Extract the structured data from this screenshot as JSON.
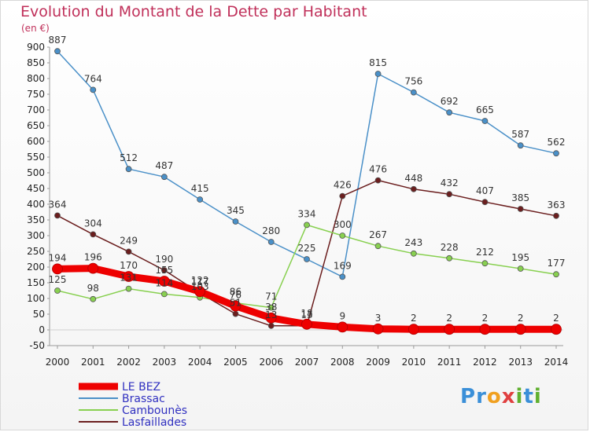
{
  "chart_data": {
    "type": "line",
    "title": "Evolution du Montant de la Dette par Habitant",
    "unit_label": "(en €)",
    "x": [
      2000,
      2001,
      2002,
      2003,
      2004,
      2005,
      2006,
      2007,
      2008,
      2009,
      2010,
      2011,
      2012,
      2013,
      2014
    ],
    "ylim": [
      -50,
      900
    ],
    "yticks": [
      -50,
      0,
      50,
      100,
      150,
      200,
      250,
      300,
      350,
      400,
      450,
      500,
      550,
      600,
      650,
      700,
      750,
      800,
      850,
      900
    ],
    "grid": false,
    "legend_position": "bottom-left",
    "series": [
      {
        "name": "Brassac",
        "color": "#4a90c8",
        "values": [
          887,
          764,
          512,
          487,
          415,
          345,
          280,
          225,
          169,
          815,
          756,
          692,
          665,
          587,
          562
        ]
      },
      {
        "name": "Lasfaillades",
        "color": "#6b1e1e",
        "values": [
          364,
          304,
          249,
          190,
          117,
          51,
          13,
          13,
          426,
          476,
          448,
          432,
          407,
          385,
          363
        ]
      },
      {
        "name": "Cambounès",
        "color": "#88d050",
        "values": [
          125,
          98,
          131,
          114,
          103,
          86,
          71,
          334,
          300,
          267,
          243,
          228,
          212,
          195,
          177
        ]
      },
      {
        "name": "LE BEZ",
        "color": "#ee0000",
        "values": [
          194,
          196,
          170,
          155,
          122,
          76,
          38,
          18,
          9,
          3,
          2,
          2,
          2,
          2,
          2
        ]
      }
    ],
    "legend": [
      "LE BEZ",
      "Brassac",
      "Cambounès",
      "Lasfaillades"
    ]
  },
  "logo": {
    "letters": [
      "P",
      "r",
      "o",
      "x",
      "i",
      "t",
      "i"
    ],
    "colors": [
      "#3a8fd8",
      "#3a8fd8",
      "#f0a020",
      "#e04040",
      "#60b030",
      "#3a8fd8",
      "#60b030"
    ]
  }
}
